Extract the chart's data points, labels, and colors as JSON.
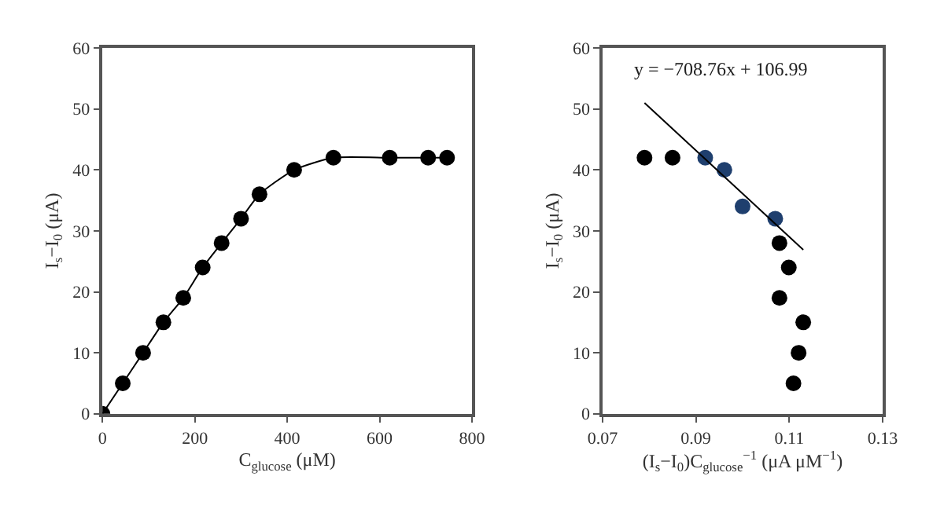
{
  "chart_data": [
    {
      "type": "line",
      "xlabel": "C$_{glucose}$ (μM)",
      "ylabel": "I$_{s}$−I$_{0}$ (μA)",
      "x": [
        0,
        44,
        88,
        132,
        175,
        217,
        258,
        300,
        340,
        415,
        500,
        622,
        705,
        746
      ],
      "series": [
        {
          "color": "#000000",
          "values": [
            0,
            5,
            10,
            15,
            19,
            24,
            28,
            32,
            36,
            40,
            42,
            42,
            42,
            42
          ]
        }
      ],
      "xlim": [
        0,
        800
      ],
      "xticks": [
        0,
        200,
        400,
        600,
        800
      ],
      "ylim": [
        0,
        60
      ],
      "yticks": [
        0,
        10,
        20,
        30,
        40,
        50,
        60
      ],
      "marker": "circle",
      "line_style": "solid"
    },
    {
      "type": "scatter",
      "xlabel": "(I$_{s}$−I$_{0}$)C$_{glucose}$$^{−1}$ (μA μM$^{−1}$)",
      "ylabel": "I$_{s}$−I$_{0}$ (μA)",
      "annotations": [
        "y = −708.76x + 106.99"
      ],
      "series": [
        {
          "color": "#000000",
          "x": [
            0.079,
            0.085,
            0.1079,
            0.1099,
            0.1079,
            0.113,
            0.112,
            0.1109
          ],
          "values": [
            42,
            42,
            28,
            24,
            19,
            15,
            10,
            5
          ]
        },
        {
          "color": "#1f3f6e",
          "x": [
            0.092,
            0.0961,
            0.1,
            0.107
          ],
          "values": [
            42,
            40,
            34,
            32
          ]
        },
        {
          "type": "line",
          "marker": "none",
          "color": "#000000",
          "x": [
            0.079,
            0.113
          ],
          "values": [
            51.0,
            26.9
          ]
        }
      ],
      "xlim": [
        0.07,
        0.13
      ],
      "xticks": [
        {
          "value": 0.07,
          "label": "0.07"
        },
        {
          "value": 0.09,
          "label": "0.09"
        },
        {
          "value": 0.11,
          "label": "0.11"
        },
        {
          "value": 0.13,
          "label": "0.13"
        }
      ],
      "ylim": [
        0,
        60
      ],
      "yticks": [
        0,
        10,
        20,
        30,
        40,
        50,
        60
      ],
      "marker": "circle"
    }
  ]
}
